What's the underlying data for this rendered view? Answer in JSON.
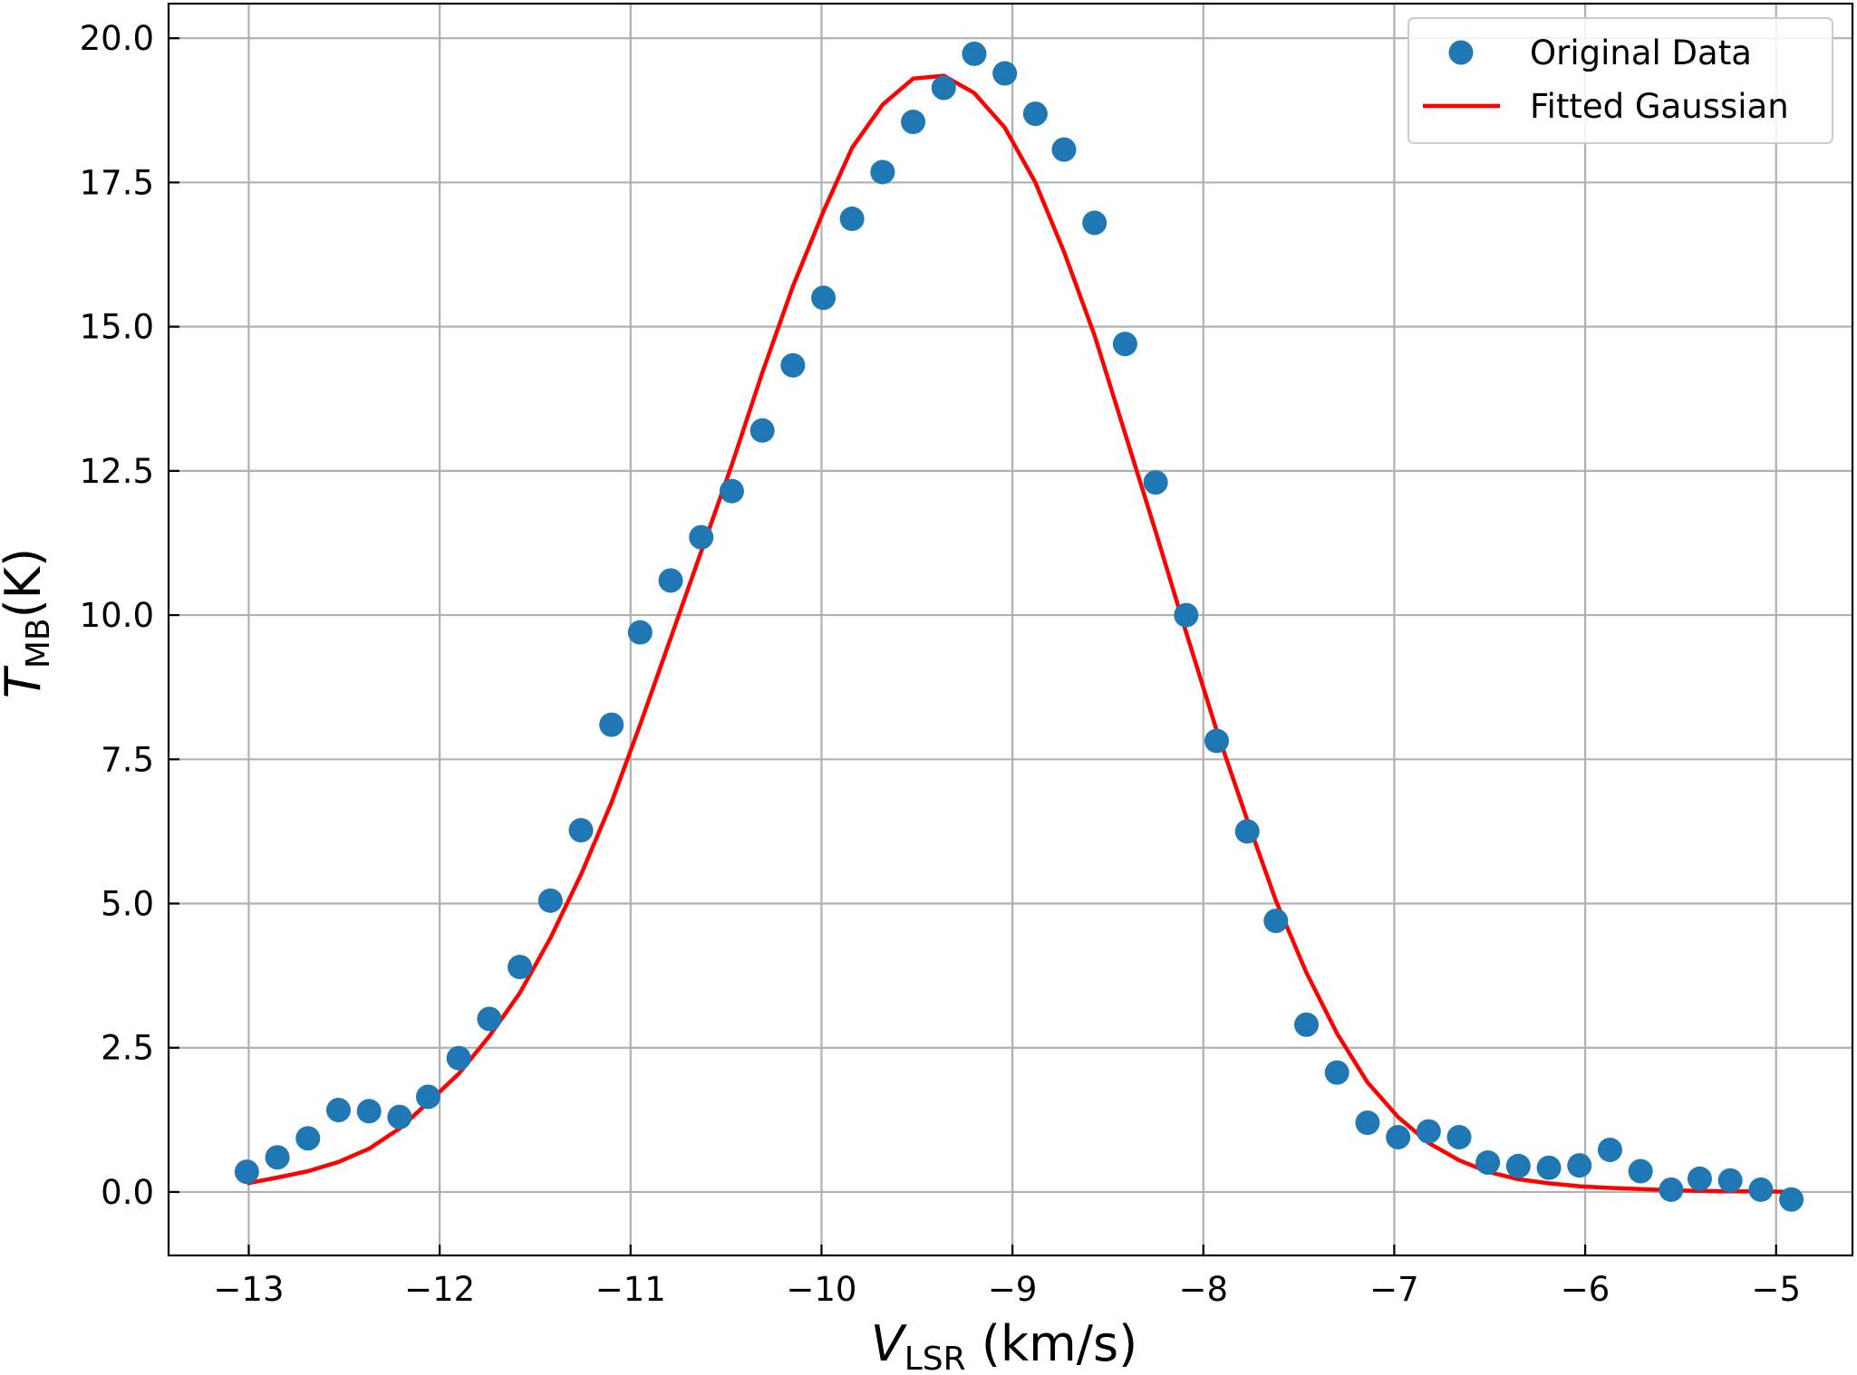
{
  "chart_data": {
    "type": "scatter",
    "title": "",
    "xlabel": {
      "main": "V",
      "sub": "LSR",
      "unit": " (km/s)"
    },
    "ylabel": {
      "main": "T",
      "sub": "MB",
      "unit": "(K)"
    },
    "xlim": [
      -13.42,
      -4.6
    ],
    "ylim": [
      -1.1,
      20.6
    ],
    "grid": true,
    "legend_position": "top-right",
    "x_ticks": [
      -13,
      -12,
      -11,
      -10,
      -9,
      -8,
      -7,
      -6,
      -5
    ],
    "x_tick_labels": [
      "−13",
      "−12",
      "−11",
      "−10",
      "−9",
      "−8",
      "−7",
      "−6",
      "−5"
    ],
    "y_ticks": [
      0,
      2.5,
      5,
      7.5,
      10,
      12.5,
      15,
      17.5,
      20
    ],
    "y_tick_labels": [
      "0.0",
      "2.5",
      "5.0",
      "7.5",
      "10.0",
      "12.5",
      "15.0",
      "17.5",
      "20.0"
    ],
    "series": [
      {
        "name": "Original Data",
        "kind": "scatter",
        "color": "#1f77b4",
        "x": [
          -13.01,
          -12.85,
          -12.69,
          -12.53,
          -12.37,
          -12.21,
          -12.06,
          -11.9,
          -11.74,
          -11.58,
          -11.42,
          -11.26,
          -11.1,
          -10.95,
          -10.79,
          -10.63,
          -10.47,
          -10.31,
          -10.15,
          -9.99,
          -9.84,
          -9.68,
          -9.52,
          -9.36,
          -9.2,
          -9.04,
          -8.88,
          -8.73,
          -8.57,
          -8.41,
          -8.25,
          -8.09,
          -7.93,
          -7.77,
          -7.62,
          -7.46,
          -7.3,
          -7.14,
          -6.98,
          -6.82,
          -6.66,
          -6.51,
          -6.35,
          -6.19,
          -6.03,
          -5.87,
          -5.71,
          -5.55,
          -5.4,
          -5.24,
          -5.08,
          -4.92
        ],
        "y": [
          0.35,
          0.6,
          0.93,
          1.42,
          1.4,
          1.3,
          1.65,
          2.32,
          3.0,
          3.9,
          5.05,
          6.27,
          8.1,
          9.7,
          10.6,
          11.35,
          12.15,
          13.2,
          14.33,
          15.5,
          16.87,
          17.68,
          18.55,
          19.14,
          19.73,
          19.39,
          18.69,
          18.07,
          16.8,
          14.7,
          12.3,
          10.0,
          7.82,
          6.25,
          4.7,
          2.9,
          2.07,
          1.2,
          0.95,
          1.05,
          0.95,
          0.51,
          0.45,
          0.42,
          0.46,
          0.73,
          0.36,
          0.04,
          0.23,
          0.2,
          0.04,
          -0.13
        ]
      },
      {
        "name": "Fitted Gaussian",
        "kind": "line",
        "color": "#ff0000",
        "x": [
          -13.01,
          -12.85,
          -12.69,
          -12.53,
          -12.37,
          -12.21,
          -12.06,
          -11.9,
          -11.74,
          -11.58,
          -11.42,
          -11.26,
          -11.1,
          -10.95,
          -10.79,
          -10.63,
          -10.47,
          -10.31,
          -10.15,
          -9.99,
          -9.84,
          -9.68,
          -9.52,
          -9.36,
          -9.2,
          -9.04,
          -8.88,
          -8.73,
          -8.57,
          -8.41,
          -8.25,
          -8.09,
          -7.93,
          -7.77,
          -7.62,
          -7.46,
          -7.3,
          -7.14,
          -6.98,
          -6.82,
          -6.66,
          -6.51,
          -6.35,
          -6.19,
          -6.03,
          -5.87,
          -5.71,
          -5.55,
          -5.4,
          -5.24,
          -5.08,
          -4.92
        ],
        "y": [
          0.15,
          0.25,
          0.36,
          0.52,
          0.75,
          1.1,
          1.55,
          2.05,
          2.7,
          3.45,
          4.4,
          5.5,
          6.75,
          8.1,
          9.6,
          11.1,
          12.6,
          14.2,
          15.7,
          17.0,
          18.1,
          18.85,
          19.3,
          19.35,
          19.05,
          18.45,
          17.5,
          16.3,
          14.85,
          13.15,
          11.45,
          9.7,
          8.0,
          6.45,
          5.05,
          3.8,
          2.75,
          1.9,
          1.3,
          0.85,
          0.55,
          0.35,
          0.22,
          0.15,
          0.1,
          0.07,
          0.05,
          0.03,
          0.02,
          0.01,
          0.01,
          0.0
        ]
      }
    ]
  }
}
